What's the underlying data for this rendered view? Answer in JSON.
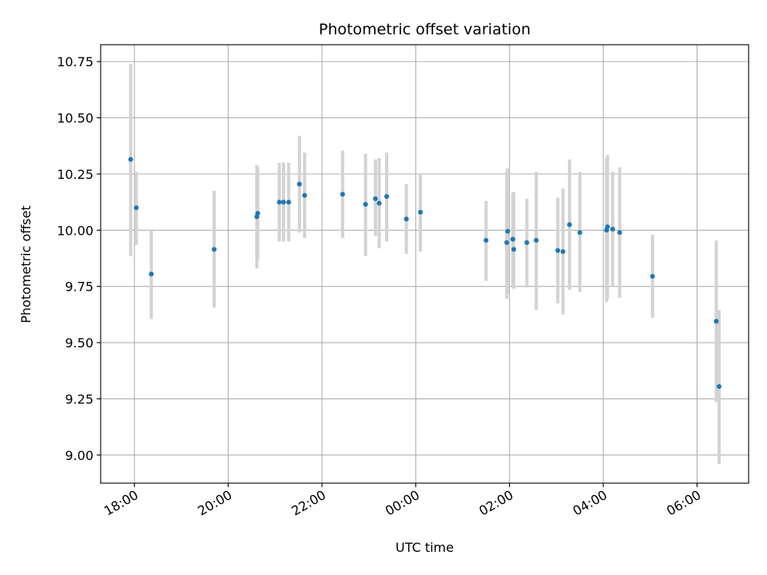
{
  "chart_data": {
    "type": "scatter",
    "title": "Photometric offset variation",
    "xlabel": "UTC time",
    "ylabel": "Photometric offset",
    "x_tick_labels": [
      "18:00",
      "20:00",
      "22:00",
      "00:00",
      "02:00",
      "04:00",
      "06:00"
    ],
    "x_tick_hours": [
      18,
      20,
      22,
      24,
      26,
      28,
      30
    ],
    "y_ticks": [
      9.0,
      9.25,
      9.5,
      9.75,
      10.0,
      10.25,
      10.5,
      10.75
    ],
    "y_tick_labels": [
      "9.00",
      "9.25",
      "9.50",
      "9.75",
      "10.00",
      "10.25",
      "10.50",
      "10.75"
    ],
    "x_unit": "hours since 00:00 UTC of first night",
    "xlim": [
      17.28,
      31.1
    ],
    "ylim": [
      8.875,
      10.825
    ],
    "grid": true,
    "colors": {
      "point": "#1f77b4",
      "errorbar": "#d3d3d3",
      "grid": "#b0b0b0",
      "axes": "#000000"
    },
    "points": [
      {
        "x": 17.92,
        "y": 10.315,
        "lo": 9.885,
        "hi": 10.74
      },
      {
        "x": 18.04,
        "y": 10.1,
        "lo": 9.935,
        "hi": 10.26
      },
      {
        "x": 18.36,
        "y": 9.805,
        "lo": 9.605,
        "hi": 10.0
      },
      {
        "x": 19.7,
        "y": 9.915,
        "lo": 9.655,
        "hi": 10.175
      },
      {
        "x": 20.61,
        "y": 10.06,
        "lo": 9.83,
        "hi": 10.29
      },
      {
        "x": 20.63,
        "y": 10.075,
        "lo": 9.87,
        "hi": 10.28
      },
      {
        "x": 21.09,
        "y": 10.125,
        "lo": 9.95,
        "hi": 10.3
      },
      {
        "x": 21.18,
        "y": 10.125,
        "lo": 9.95,
        "hi": 10.3
      },
      {
        "x": 21.29,
        "y": 10.125,
        "lo": 9.95,
        "hi": 10.3
      },
      {
        "x": 21.52,
        "y": 10.205,
        "lo": 9.99,
        "hi": 10.42
      },
      {
        "x": 21.63,
        "y": 10.155,
        "lo": 9.965,
        "hi": 10.345
      },
      {
        "x": 22.44,
        "y": 10.16,
        "lo": 9.965,
        "hi": 10.355
      },
      {
        "x": 22.93,
        "y": 10.115,
        "lo": 9.885,
        "hi": 10.34
      },
      {
        "x": 23.14,
        "y": 10.14,
        "lo": 9.975,
        "hi": 10.315
      },
      {
        "x": 23.22,
        "y": 10.12,
        "lo": 9.92,
        "hi": 10.32
      },
      {
        "x": 23.38,
        "y": 10.15,
        "lo": 9.95,
        "hi": 10.345
      },
      {
        "x": 23.8,
        "y": 10.05,
        "lo": 9.895,
        "hi": 10.205
      },
      {
        "x": 24.1,
        "y": 10.08,
        "lo": 9.905,
        "hi": 10.25
      },
      {
        "x": 25.5,
        "y": 9.955,
        "lo": 9.775,
        "hi": 10.13
      },
      {
        "x": 25.94,
        "y": 9.945,
        "lo": 9.695,
        "hi": 10.26
      },
      {
        "x": 25.96,
        "y": 9.995,
        "lo": 9.715,
        "hi": 10.275
      },
      {
        "x": 26.07,
        "y": 9.96,
        "lo": 9.745,
        "hi": 10.165
      },
      {
        "x": 26.09,
        "y": 9.915,
        "lo": 9.74,
        "hi": 10.17
      },
      {
        "x": 26.37,
        "y": 9.945,
        "lo": 9.745,
        "hi": 10.14
      },
      {
        "x": 26.57,
        "y": 9.955,
        "lo": 9.645,
        "hi": 10.26
      },
      {
        "x": 27.03,
        "y": 9.91,
        "lo": 9.675,
        "hi": 10.145
      },
      {
        "x": 27.14,
        "y": 9.905,
        "lo": 9.625,
        "hi": 10.185
      },
      {
        "x": 27.28,
        "y": 10.025,
        "lo": 9.735,
        "hi": 10.315
      },
      {
        "x": 27.5,
        "y": 9.99,
        "lo": 9.725,
        "hi": 10.26
      },
      {
        "x": 28.07,
        "y": 10.0,
        "lo": 9.68,
        "hi": 10.32
      },
      {
        "x": 28.09,
        "y": 10.015,
        "lo": 9.695,
        "hi": 10.335
      },
      {
        "x": 28.2,
        "y": 10.005,
        "lo": 9.75,
        "hi": 10.26
      },
      {
        "x": 28.35,
        "y": 9.99,
        "lo": 9.7,
        "hi": 10.28
      },
      {
        "x": 29.05,
        "y": 9.795,
        "lo": 9.61,
        "hi": 9.98
      },
      {
        "x": 30.41,
        "y": 9.595,
        "lo": 9.235,
        "hi": 9.955
      },
      {
        "x": 30.47,
        "y": 9.305,
        "lo": 8.96,
        "hi": 9.645
      }
    ]
  }
}
